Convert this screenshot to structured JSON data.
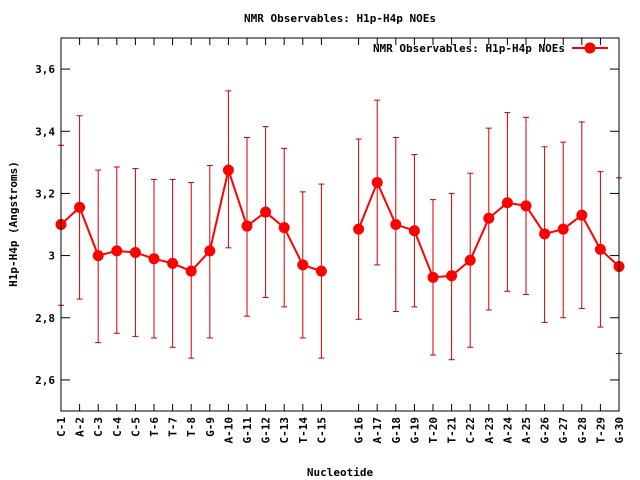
{
  "chart_data": {
    "type": "line",
    "title": "NMR Observables: H1p-H4p NOEs",
    "xlabel": "Nucleotide",
    "ylabel": "H1p-H4p (Angstroms)",
    "ylim": [
      2.5,
      3.7
    ],
    "y_ticks": [
      2.6,
      2.8,
      3,
      3.2,
      3.4,
      3.6
    ],
    "y_tick_labels": [
      "2,6",
      "2,8",
      "3",
      "3,2",
      "3,4",
      "3,6"
    ],
    "grid": false,
    "legend": {
      "position": "top-right",
      "entries": [
        "NMR Observables: H1p-H4p NOEs"
      ]
    },
    "colors": {
      "series": "#ff0000",
      "errorbar": "#cc0000",
      "frame": "#000000"
    },
    "categories": [
      "C-1",
      "A-2",
      "C-3",
      "C-4",
      "C-5",
      "T-6",
      "T-7",
      "T-8",
      "G-9",
      "A-10",
      "G-11",
      "G-12",
      "C-13",
      "T-14",
      "C-15",
      "G-16",
      "A-17",
      "G-18",
      "G-19",
      "T-20",
      "T-21",
      "C-22",
      "A-23",
      "A-24",
      "A-25",
      "G-26",
      "G-27",
      "G-28",
      "T-29",
      "G-30"
    ],
    "x": [
      1,
      2,
      3,
      4,
      5,
      6,
      7,
      8,
      9,
      10,
      11,
      12,
      13,
      14,
      15,
      17,
      18,
      19,
      20,
      21,
      22,
      23,
      24,
      25,
      26,
      27,
      28,
      29,
      30,
      31
    ],
    "xlim": [
      1,
      31
    ],
    "series": [
      {
        "name": "NMR Observables: H1p-H4p NOEs",
        "segments": [
          [
            0,
            14
          ],
          [
            15,
            29
          ]
        ],
        "values": [
          3.1,
          3.155,
          3.0,
          3.015,
          3.01,
          2.99,
          2.975,
          2.95,
          3.015,
          3.275,
          3.095,
          3.14,
          3.09,
          2.97,
          2.95,
          3.085,
          3.235,
          3.1,
          3.08,
          2.93,
          2.935,
          2.985,
          3.12,
          3.17,
          3.16,
          3.07,
          3.085,
          3.13,
          3.02,
          2.965
        ],
        "err_low": [
          2.84,
          2.86,
          2.72,
          2.75,
          2.74,
          2.735,
          2.705,
          2.67,
          2.735,
          3.025,
          2.805,
          2.865,
          2.835,
          2.735,
          2.67,
          2.795,
          2.97,
          2.82,
          2.835,
          2.68,
          2.665,
          2.705,
          2.825,
          2.885,
          2.875,
          2.785,
          2.8,
          2.83,
          2.77,
          2.685
        ],
        "err_high": [
          3.355,
          3.45,
          3.275,
          3.285,
          3.28,
          3.245,
          3.245,
          3.235,
          3.29,
          3.53,
          3.38,
          3.415,
          3.345,
          3.205,
          3.23,
          3.375,
          3.5,
          3.38,
          3.325,
          3.18,
          3.2,
          3.265,
          3.41,
          3.46,
          3.445,
          3.35,
          3.365,
          3.43,
          3.27,
          3.25
        ]
      }
    ]
  }
}
